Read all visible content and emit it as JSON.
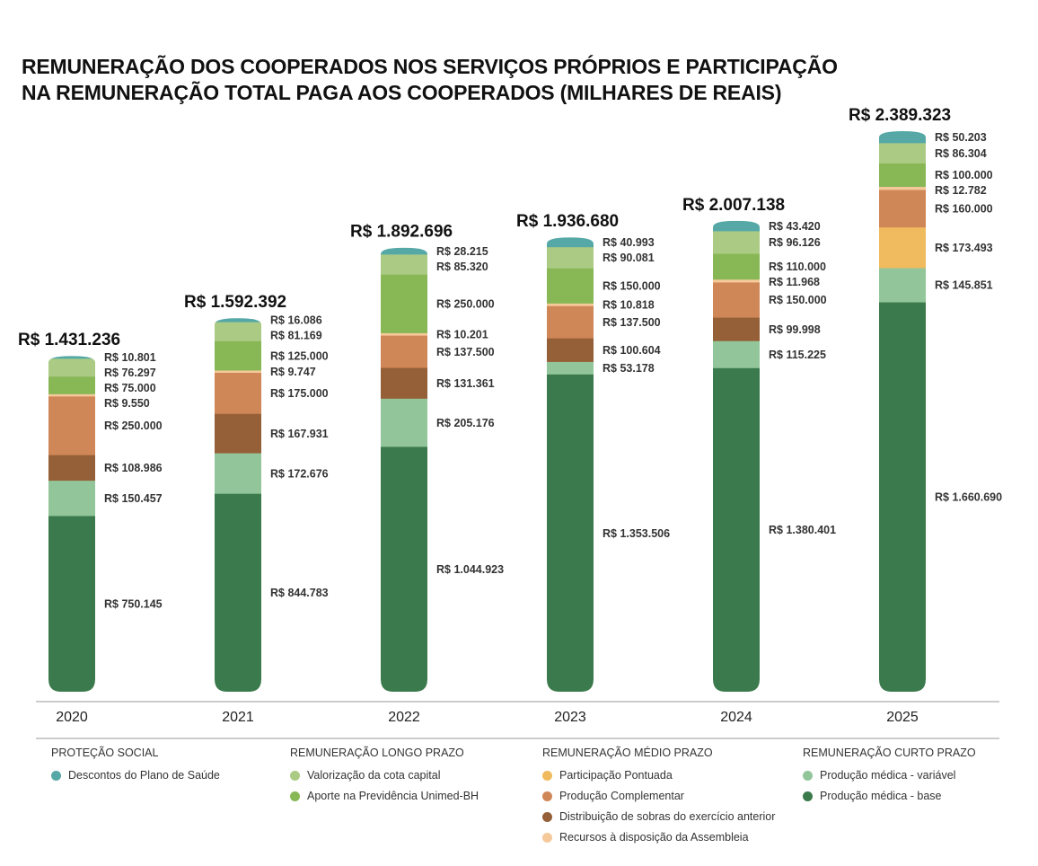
{
  "chart_data": {
    "type": "bar",
    "stacked": true,
    "title_line1": "REMUNERAÇÃO DOS COOPERADOS NOS SERVIÇOS PRÓPRIOS E PARTICIPAÇÃO",
    "title_line2": "NA REMUNERAÇÃO TOTAL PAGA AOS COOPERADOS (MILHARES DE REAIS)",
    "currency_prefix": "R$",
    "categories": [
      "2020",
      "2021",
      "2022",
      "2023",
      "2024",
      "2025"
    ],
    "totals": [
      1431236,
      1592392,
      1892696,
      1936680,
      2007138,
      2389323
    ],
    "series": [
      {
        "key": "base",
        "name": "Produção médica - base",
        "color": "#3a7a4c",
        "values": [
          750145,
          844783,
          1044923,
          1353506,
          1380401,
          1660690
        ]
      },
      {
        "key": "variavel",
        "name": "Produção médica - variável",
        "color": "#93c59a",
        "values": [
          150457,
          172676,
          205176,
          53178,
          115225,
          145851
        ]
      },
      {
        "key": "pontuada",
        "name": "Participação Pontuada",
        "color": "#f0bb5e",
        "values": [
          0,
          0,
          0,
          0,
          0,
          173493
        ]
      },
      {
        "key": "sobras",
        "name": "Distribuição de sobras do exercício anterior",
        "color": "#955f37",
        "values": [
          108986,
          167931,
          131361,
          100604,
          99998,
          0
        ]
      },
      {
        "key": "complementar",
        "name": "Produção Complementar",
        "color": "#d08757",
        "values": [
          250000,
          175000,
          137500,
          137500,
          150000,
          160000
        ]
      },
      {
        "key": "recursos",
        "name": "Recursos à disposição da Assembleia",
        "color": "#f6c99b",
        "values": [
          9550,
          9747,
          10201,
          10818,
          11968,
          12782
        ]
      },
      {
        "key": "aporte",
        "name": "Aporte na Previdência Unimed-BH",
        "color": "#88b755",
        "values": [
          75000,
          125000,
          250000,
          150000,
          110000,
          100000
        ]
      },
      {
        "key": "valorizacao",
        "name": "Valorização da cota capital",
        "color": "#abcb85",
        "values": [
          76297,
          81169,
          85320,
          90081,
          96126,
          86304
        ]
      },
      {
        "key": "descontos",
        "name": "Descontos do Plano de Saúde",
        "color": "#55a8a5",
        "values": [
          10801,
          16086,
          28215,
          40993,
          43420,
          50203
        ]
      }
    ],
    "legend_groups": [
      {
        "heading": "PROTEÇÃO SOCIAL",
        "items": [
          "descontos"
        ]
      },
      {
        "heading": "REMUNERAÇÃO LONGO PRAZO",
        "items": [
          "valorizacao",
          "aporte"
        ]
      },
      {
        "heading": "REMUNERAÇÃO MÉDIO PRAZO",
        "items": [
          "pontuada",
          "complementar",
          "sobras",
          "recursos"
        ]
      },
      {
        "heading": "REMUNERAÇÃO CURTO PRAZO",
        "items": [
          "variavel",
          "base"
        ]
      }
    ],
    "legend_placement": "bottom",
    "grid": false
  }
}
